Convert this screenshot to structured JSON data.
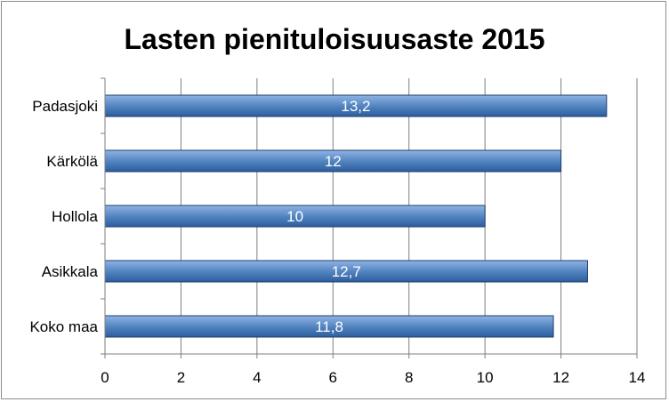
{
  "chart_data": {
    "type": "bar",
    "orientation": "horizontal",
    "title": "Lasten pienituloisuusaste 2015",
    "categories": [
      "Padasjoki",
      "Kärkölä",
      "Hollola",
      "Asikkala",
      "Koko maa"
    ],
    "values": [
      13.2,
      12,
      10,
      12.7,
      11.8
    ],
    "data_labels": [
      "13,2",
      "12",
      "10",
      "12,7",
      "11,8"
    ],
    "xlim": [
      0,
      14
    ],
    "xticks": [
      0,
      2,
      4,
      6,
      8,
      10,
      12,
      14
    ],
    "xlabel": "",
    "ylabel": "",
    "grid": true,
    "legend": "none",
    "colors": {
      "bar_top": "#8fb3e6",
      "bar_mid": "#4f81bd",
      "bar_bottom": "#2c5d9e",
      "bar_edge": "#1f3f6e",
      "grid": "#7f7f7f",
      "axis": "#7f7f7f"
    }
  }
}
